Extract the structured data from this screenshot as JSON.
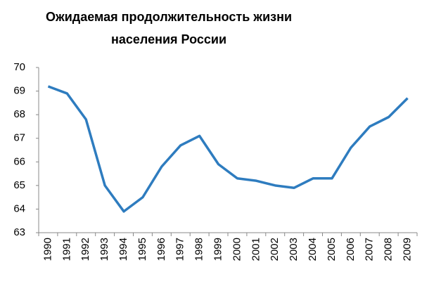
{
  "chart_data": {
    "type": "line",
    "title": "Ожидаемая продолжительность жизни населения России",
    "categories": [
      "1990",
      "1991",
      "1992",
      "1993",
      "1994",
      "1995",
      "1996",
      "1997",
      "1998",
      "1999",
      "2000",
      "2001",
      "2002",
      "2003",
      "2004",
      "2005",
      "2006",
      "2007",
      "2008",
      "2009"
    ],
    "values": [
      69.2,
      68.9,
      67.8,
      65.0,
      63.9,
      64.5,
      65.8,
      66.7,
      67.1,
      65.9,
      65.3,
      65.2,
      65.0,
      64.9,
      65.3,
      65.3,
      66.6,
      67.5,
      67.9,
      68.7
    ],
    "color": "#2e7cbf",
    "ylim": [
      63,
      70
    ],
    "yticks": [
      63,
      64,
      65,
      66,
      67,
      68,
      69,
      70
    ],
    "grid": false
  }
}
